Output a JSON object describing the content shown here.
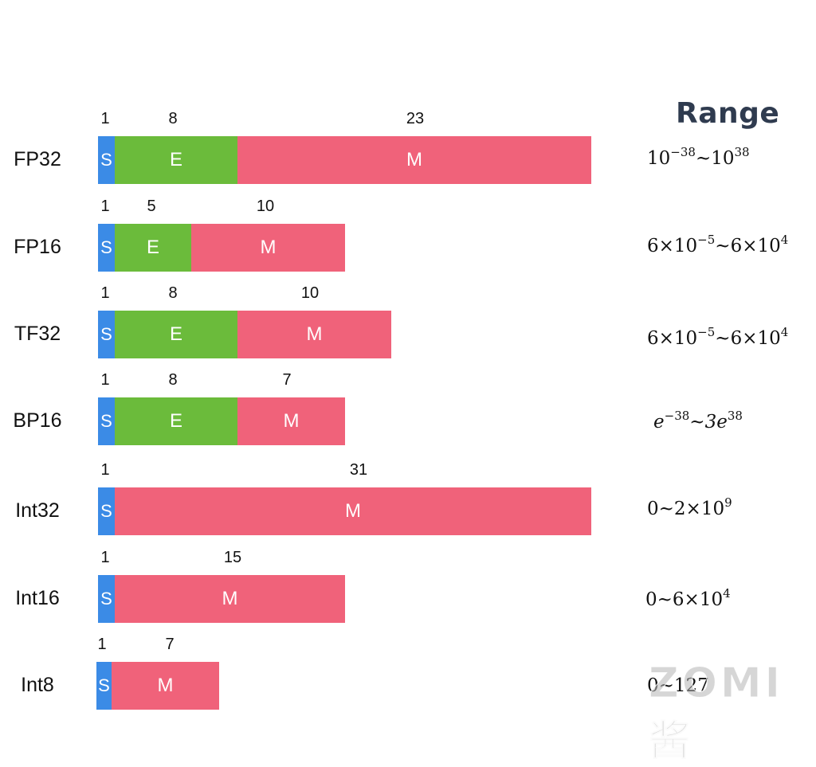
{
  "range_title": "Range",
  "colors": {
    "sign": "#3b8be6",
    "exponent": "#6bbb3b",
    "mantissa": "#f0627a"
  },
  "formats": [
    {
      "name": "FP32",
      "sign_bits": "1",
      "exp_bits": "8",
      "man_bits": "23",
      "range": {
        "a": "10",
        "a_exp": "−38",
        "sep": "~",
        "b": "10",
        "b_exp": "38"
      }
    },
    {
      "name": "FP16",
      "sign_bits": "1",
      "exp_bits": "5",
      "man_bits": "10",
      "range": {
        "a": "6×10",
        "a_exp": "−5",
        "sep": "~",
        "b": "6×10",
        "b_exp": "4"
      }
    },
    {
      "name": "TF32",
      "sign_bits": "1",
      "exp_bits": "8",
      "man_bits": "10",
      "range": {
        "a": "6×10",
        "a_exp": "−5",
        "sep": "~",
        "b": "6×10",
        "b_exp": "4"
      }
    },
    {
      "name": "BP16",
      "sign_bits": "1",
      "exp_bits": "8",
      "man_bits": "7",
      "range": {
        "a": "e",
        "a_exp": "−38",
        "sep": "~",
        "b": "3e",
        "b_exp": "38"
      }
    },
    {
      "name": "Int32",
      "sign_bits": "1",
      "exp_bits": "",
      "man_bits": "31",
      "range": {
        "a": "0",
        "a_exp": "",
        "sep": "~",
        "b": "2×10",
        "b_exp": "9"
      }
    },
    {
      "name": "Int16",
      "sign_bits": "1",
      "exp_bits": "",
      "man_bits": "15",
      "range": {
        "a": "0",
        "a_exp": "",
        "sep": "~",
        "b": "6×10",
        "b_exp": "4"
      }
    },
    {
      "name": "Int8",
      "sign_bits": "1",
      "exp_bits": "",
      "man_bits": "7",
      "range": {
        "a": "0",
        "a_exp": "",
        "sep": "~",
        "b": "127",
        "b_exp": ""
      }
    }
  ],
  "segment_letters": {
    "sign": "S",
    "exponent": "E",
    "mantissa": "M"
  },
  "watermark": "ZOMI酱"
}
